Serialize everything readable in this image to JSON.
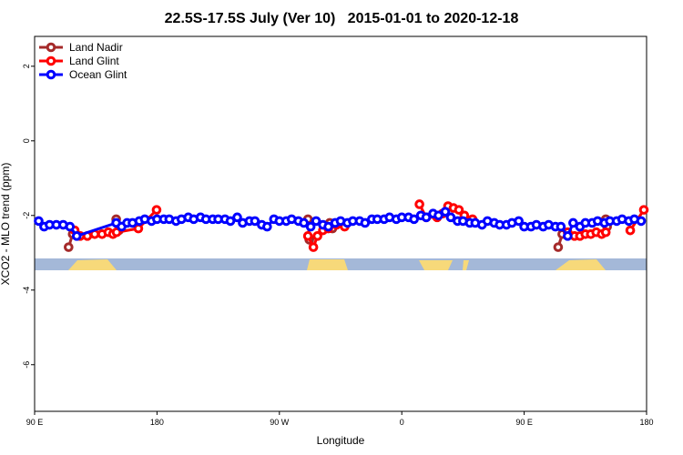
{
  "chart_data": {
    "type": "line",
    "title": "22.5S-17.5S July (Ver 10)   2015-01-01 to 2020-12-18",
    "x_label": "Longitude",
    "y_label": "XCO2 - MLO trend (ppm)",
    "xlim": [
      90,
      540
    ],
    "ylim": [
      -7.25,
      2.8
    ],
    "xticks": [
      {
        "value": 90,
        "label": "90 E"
      },
      180,
      {
        "value": 270,
        "label": "90 W"
      },
      {
        "value": 360,
        "label": "0"
      },
      {
        "value": 450,
        "label": "90 E"
      },
      {
        "value": 540,
        "label": "180"
      }
    ],
    "yticks": [
      2,
      0,
      -2,
      -4,
      -6
    ],
    "legend": "top-left",
    "series": [
      {
        "name": "Land Nadir",
        "color": "#a52a2a",
        "x": [
          115,
          118,
          130,
          150,
          152,
          200,
          291,
          292,
          296,
          307,
          309,
          400,
          475,
          478,
          490,
          510,
          511
        ],
        "values": [
          -2.85,
          -2.5,
          null,
          -2.1,
          -2.4,
          null,
          -2.1,
          -2.65,
          null,
          -2.2,
          -2.35,
          null,
          -2.85,
          -2.5,
          null,
          -2.1,
          -2.3
        ]
      },
      {
        "name": "Land Glint",
        "color": "#ff0000",
        "x": [
          119.5,
          123.5,
          128.8,
          134.2,
          139.6,
          144.2,
          147.6,
          150.3,
          166.3,
          179.7,
          200,
          291,
          295,
          298,
          302,
          306,
          312,
          318,
          340,
          373,
          378,
          386,
          390,
          394,
          398,
          402,
          406,
          412,
          440,
          482,
          487,
          491,
          495,
          499,
          503,
          507,
          510,
          515,
          528,
          538
        ],
        "values": [
          -2.4,
          -2.55,
          -2.55,
          -2.5,
          -2.5,
          -2.45,
          -2.5,
          -2.45,
          -2.35,
          -1.85,
          null,
          -2.55,
          -2.85,
          -2.55,
          -2.4,
          -2.35,
          -2.25,
          -2.3,
          null,
          -1.7,
          -2.05,
          -2.05,
          -1.95,
          -1.75,
          -1.8,
          -1.85,
          -2.0,
          -2.1,
          null,
          -2.45,
          -2.55,
          -2.55,
          -2.5,
          -2.5,
          -2.45,
          -2.5,
          -2.45,
          null,
          -2.4,
          -1.85
        ]
      },
      {
        "name": "Ocean Glint",
        "color": "#0000ff",
        "x": [
          93,
          97,
          101,
          106,
          111,
          116,
          121,
          150,
          154,
          158,
          162,
          167,
          171,
          176,
          180,
          185,
          189,
          194,
          198,
          203,
          207,
          212,
          216,
          221,
          225,
          230,
          234,
          239,
          243,
          248,
          252,
          257,
          261,
          266,
          270,
          275,
          279,
          284,
          288,
          293,
          297,
          302,
          306,
          311,
          315,
          320,
          324,
          329,
          333,
          338,
          342,
          347,
          351,
          356,
          360,
          365,
          369,
          374,
          378,
          383,
          387,
          392,
          396,
          401,
          405,
          410,
          414,
          419,
          423,
          428,
          432,
          437,
          441,
          446,
          450,
          455,
          459,
          464,
          468,
          473,
          477,
          482,
          486,
          491,
          495,
          500,
          504,
          509,
          513,
          518,
          522,
          527,
          531,
          536
        ],
        "values": [
          -2.15,
          -2.3,
          -2.25,
          -2.25,
          -2.25,
          -2.3,
          -2.55,
          -2.2,
          -2.3,
          -2.2,
          -2.2,
          -2.15,
          -2.1,
          -2.15,
          -2.1,
          -2.1,
          -2.1,
          -2.15,
          -2.1,
          -2.05,
          -2.1,
          -2.05,
          -2.1,
          -2.1,
          -2.1,
          -2.1,
          -2.15,
          -2.05,
          -2.2,
          -2.15,
          -2.15,
          -2.25,
          -2.3,
          -2.1,
          -2.15,
          -2.15,
          -2.1,
          -2.15,
          -2.2,
          -2.3,
          -2.15,
          -2.25,
          -2.3,
          -2.2,
          -2.15,
          -2.2,
          -2.15,
          -2.15,
          -2.2,
          -2.1,
          -2.1,
          -2.1,
          -2.05,
          -2.1,
          -2.05,
          -2.05,
          -2.1,
          -2.0,
          -2.05,
          -1.95,
          -2.0,
          -1.9,
          -2.05,
          -2.15,
          -2.15,
          -2.2,
          -2.2,
          -2.25,
          -2.15,
          -2.2,
          -2.25,
          -2.25,
          -2.2,
          -2.15,
          -2.3,
          -2.3,
          -2.25,
          -2.3,
          -2.25,
          -2.3,
          -2.3,
          -2.55,
          -2.2,
          -2.3,
          -2.2,
          -2.2,
          -2.15,
          -2.2,
          -2.15,
          -2.15,
          -2.1,
          -2.15,
          -2.1,
          -2.15
        ]
      }
    ]
  }
}
